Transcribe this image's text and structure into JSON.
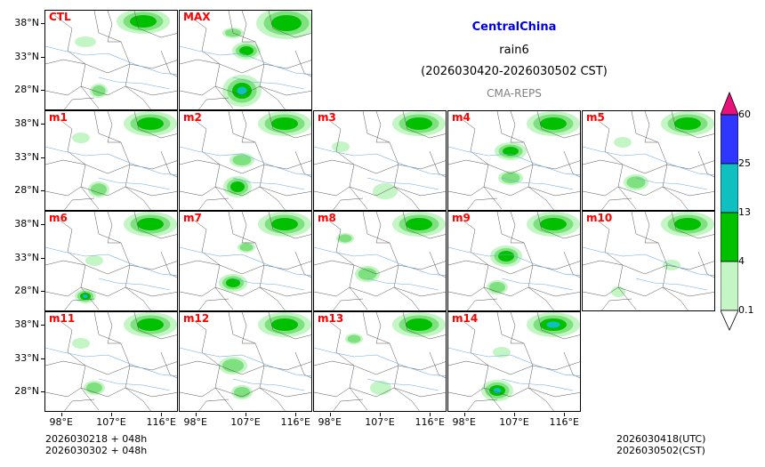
{
  "title": "CentralChina",
  "variable": "rain6",
  "period": "(2026030420-2026030502 CST)",
  "model": "CMA-REPS",
  "panels": [
    "CTL",
    "MAX",
    "m1",
    "m2",
    "m3",
    "m4",
    "m5",
    "m6",
    "m7",
    "m8",
    "m9",
    "m10",
    "m11",
    "m12",
    "m13",
    "m14"
  ],
  "lat_labels": [
    "38°N",
    "33°N",
    "28°N"
  ],
  "lon_labels": [
    "98°E",
    "107°E",
    "116°E"
  ],
  "colorbar": {
    "levels": [
      "60",
      "25",
      "13",
      "4",
      "0.1"
    ],
    "colors": [
      "#2e36ff",
      "#10bfbf",
      "#00c000",
      "#c4f5c4",
      "#ffffff"
    ],
    "extend_max_color": "#e8117a"
  },
  "footer": {
    "init_utc": "2026030218  +  048h",
    "init_cst": "2026030302  +  048h",
    "valid_utc": "2026030418(UTC)",
    "valid_cst": "2026030502(CST)"
  },
  "chart_data": {
    "type": "heatmap",
    "title": "CentralChina rain6 (2026030420-2026030502 CST) CMA-REPS",
    "members": [
      "CTL",
      "MAX",
      "m1",
      "m2",
      "m3",
      "m4",
      "m5",
      "m6",
      "m7",
      "m8",
      "m9",
      "m10",
      "m11",
      "m12",
      "m13",
      "m14"
    ],
    "lat_ticks_deg": [
      38,
      33,
      28
    ],
    "lon_ticks_deg": [
      98,
      107,
      116
    ],
    "levels_mm": [
      0.1,
      4,
      13,
      25,
      60
    ],
    "xlabel": "",
    "ylabel": ""
  }
}
